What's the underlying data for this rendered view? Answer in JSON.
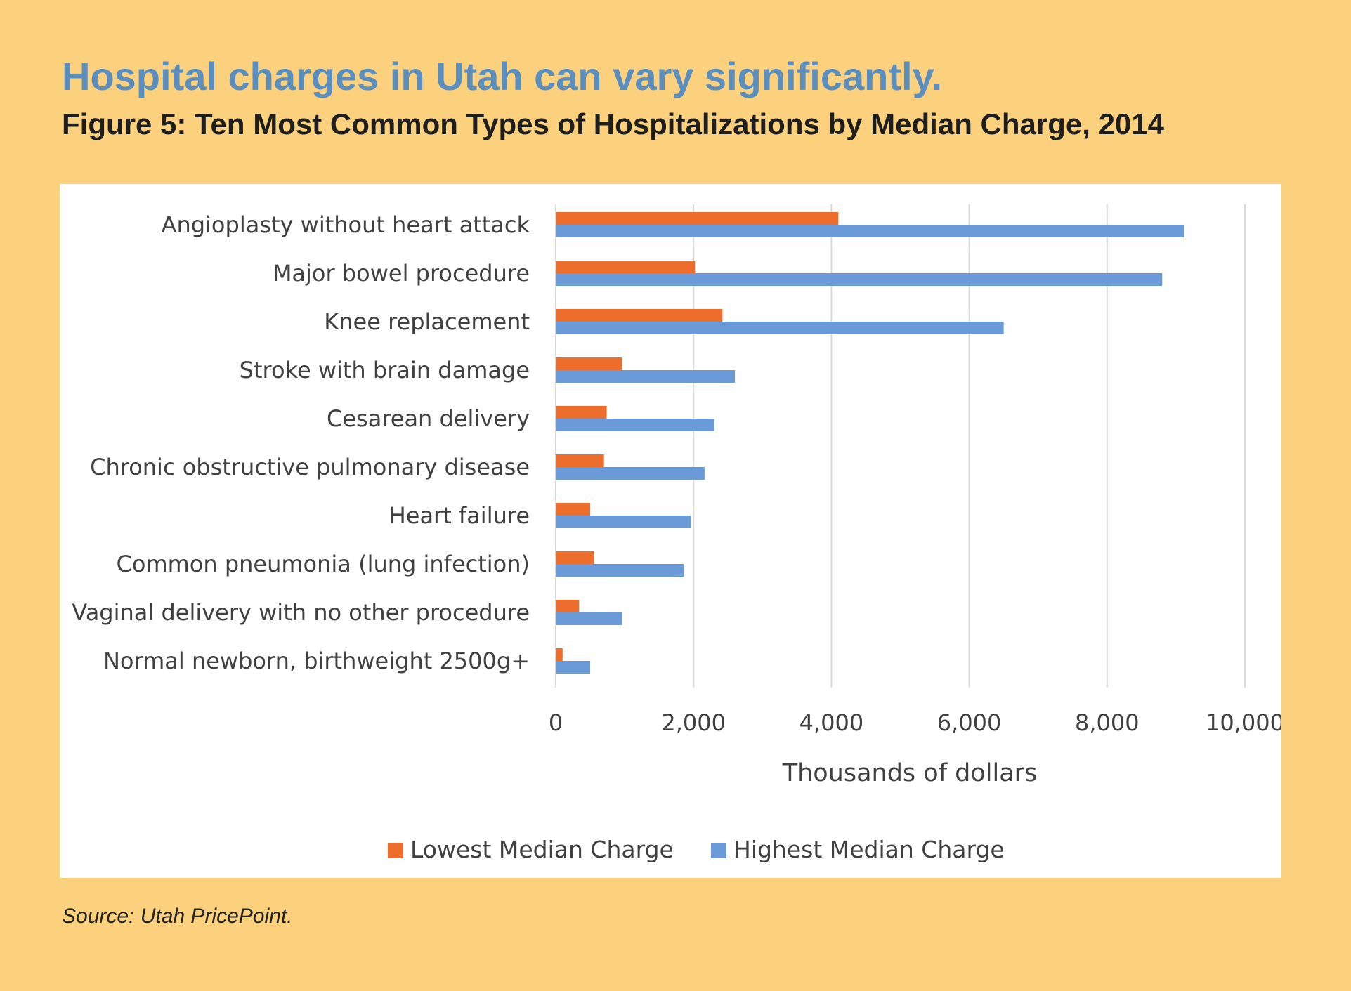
{
  "header": {
    "headline": "Hospital charges in Utah can vary significantly.",
    "figure_title": "Figure 5: Ten Most Common Types of Hospitalizations by Median Charge, 2014"
  },
  "footer": {
    "source": "Source: Utah PricePoint."
  },
  "chart_data": {
    "type": "bar",
    "orientation": "horizontal",
    "title": "Figure 5: Ten Most Common Types of Hospitalizations by Median Charge, 2014",
    "xlabel": "Thousands of dollars",
    "ylabel": "",
    "xlim": [
      0,
      10000
    ],
    "x_ticks": [
      0,
      2000,
      4000,
      6000,
      8000,
      10000
    ],
    "x_tick_labels": [
      "0",
      "2,000",
      "4,000",
      "6,000",
      "8,000",
      "10,000"
    ],
    "grid": "vertical",
    "legend_position": "bottom",
    "categories": [
      "Angioplasty without heart attack",
      "Major bowel procedure",
      "Knee replacement",
      "Stroke with brain damage",
      "Cesarean delivery",
      "Chronic obstructive pulmonary disease",
      "Heart failure",
      "Common pneumonia (lung infection)",
      "Vaginal delivery with no other procedure",
      "Normal newborn, birthweight 2500g+"
    ],
    "series": [
      {
        "name": "Lowest Median Charge",
        "color": "#ED6D2C",
        "values": [
          4100,
          2020,
          2420,
          960,
          740,
          700,
          500,
          560,
          340,
          100
        ]
      },
      {
        "name": "Highest Median Charge",
        "color": "#6A9BD8",
        "values": [
          9120,
          8800,
          6500,
          2600,
          2300,
          2160,
          1960,
          1860,
          960,
          500
        ]
      }
    ]
  }
}
